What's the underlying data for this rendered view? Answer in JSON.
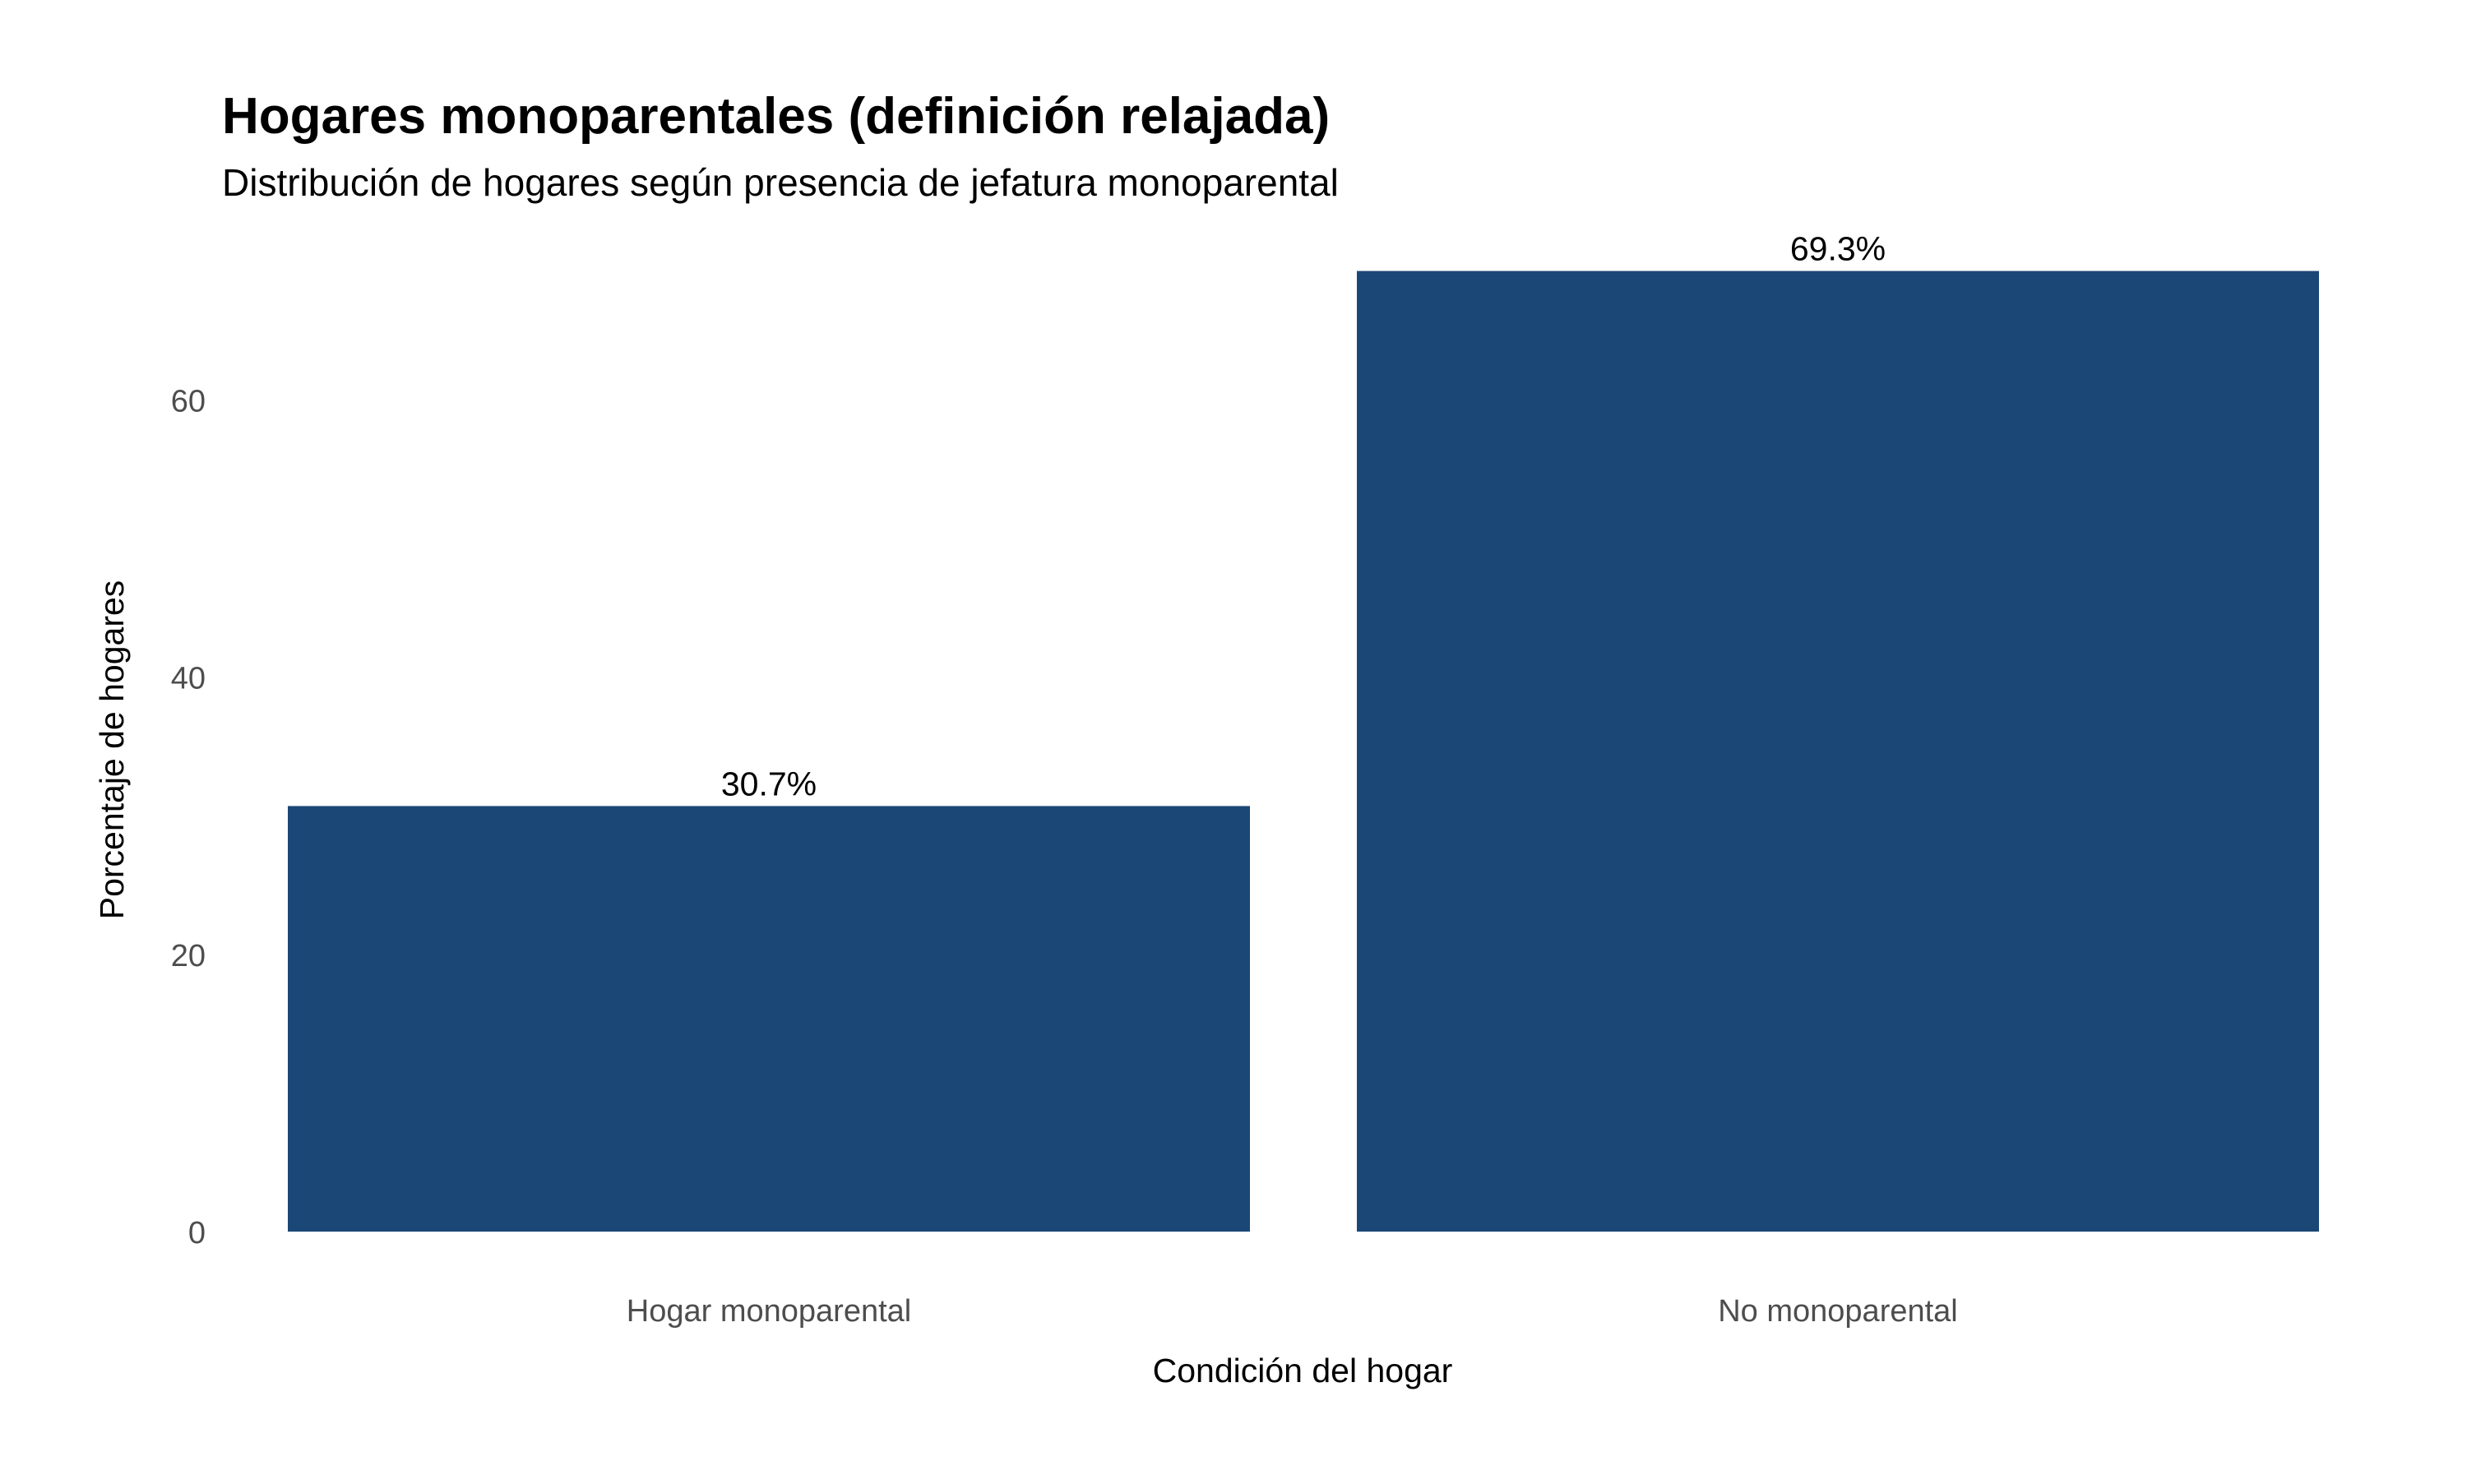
{
  "chart_data": {
    "type": "bar",
    "title": "Hogares monoparentales (definición relajada)",
    "subtitle": "Distribución de hogares según presencia de jefatura monoparental",
    "xlabel": "Condición del hogar",
    "ylabel": "Porcentaje de hogares",
    "categories": [
      "Hogar monoparental",
      "No monoparental"
    ],
    "values": [
      30.7,
      69.3
    ],
    "data_labels": [
      "30.7%",
      "69.3%"
    ],
    "y_ticks": [
      0,
      20,
      40,
      60
    ],
    "y_tick_labels": [
      "0",
      "20",
      "40",
      "60"
    ],
    "ylim": [
      0,
      72.8
    ],
    "grid": false,
    "legend": "none",
    "bar_color": "#1a4776"
  }
}
